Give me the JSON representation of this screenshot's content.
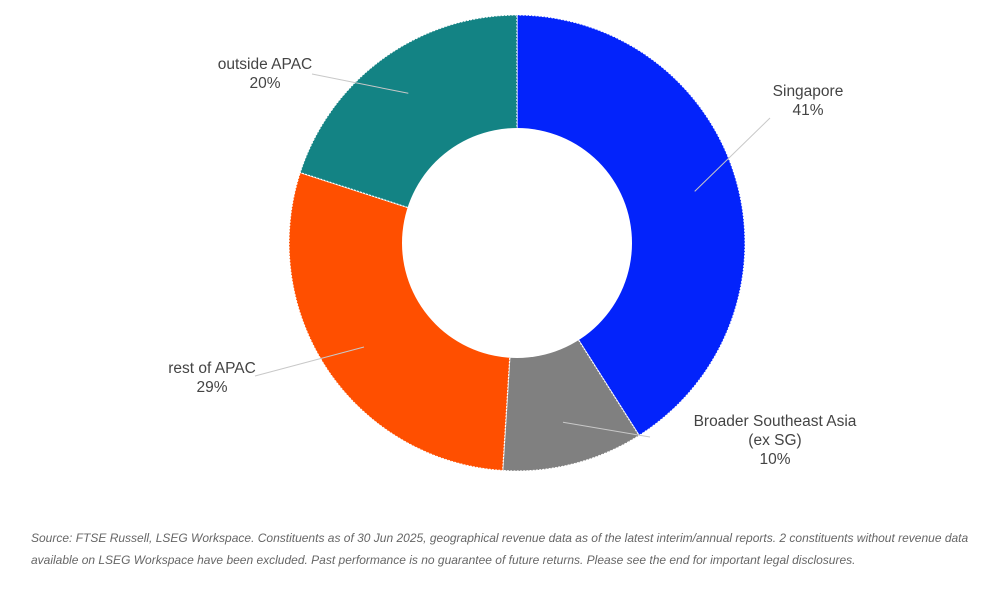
{
  "chart_data": {
    "type": "pie",
    "variant": "donut",
    "slices": [
      {
        "name": "Singapore",
        "label_lines": [
          "Singapore",
          "41%"
        ],
        "value": 41,
        "color": "#0323FB"
      },
      {
        "name": "Broader Southeast Asia (ex SG)",
        "label_lines": [
          "Broader Southeast Asia",
          "(ex SG)",
          "10%"
        ],
        "value": 10,
        "color": "#808080"
      },
      {
        "name": "rest of APAC",
        "label_lines": [
          "rest of APAC",
          "29%"
        ],
        "value": 29,
        "color": "#FF4F00"
      },
      {
        "name": "outside APAC",
        "label_lines": [
          "outside APAC",
          "20%"
        ],
        "value": 20,
        "color": "#138384"
      }
    ],
    "legend": "none",
    "data_labels": "outside-with-leader-lines"
  },
  "footnote": {
    "text": "Source: FTSE Russell, LSEG Workspace. Constituents as of 30 Jun 2025, geographical revenue data as of the latest interim/annual reports. 2 constituents without revenue data available on LSEG Workspace have been excluded. Past performance is no guarantee of future returns. Please see the end for important legal disclosures."
  }
}
